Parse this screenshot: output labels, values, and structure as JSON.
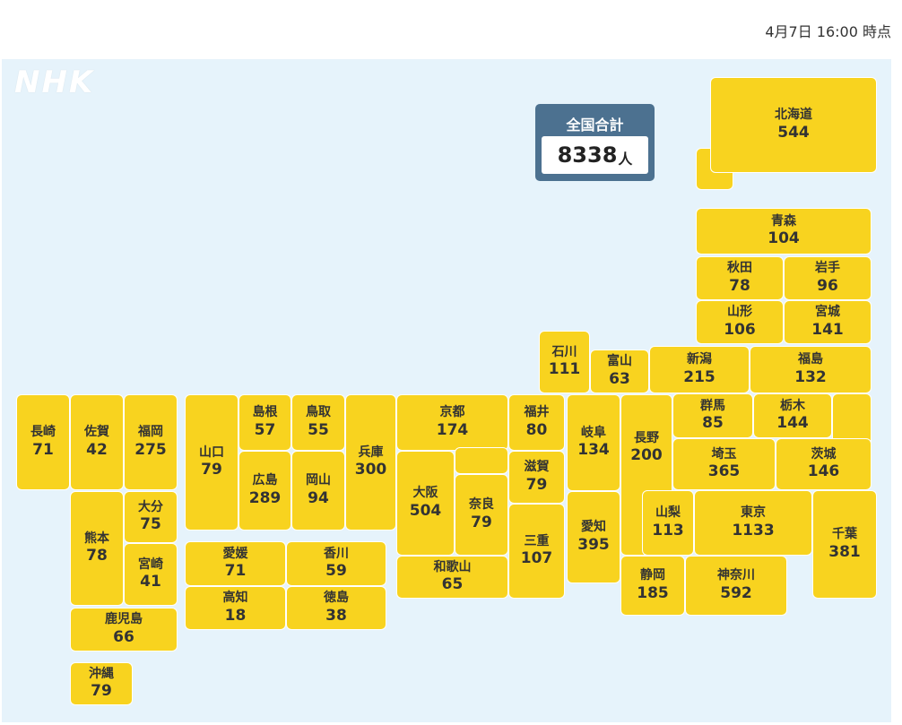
{
  "timestamp": "4月7日 16:00 時点",
  "logo": "NHK",
  "total": {
    "label": "全国合計",
    "value": "8338",
    "unit": "人"
  },
  "colors": {
    "tile": "#f8d31f",
    "background": "#e6f3fb",
    "total_box": "#4c7190"
  },
  "prefectures": [
    {
      "name": "北海道",
      "value": "544"
    },
    {
      "name": "青森",
      "value": "104"
    },
    {
      "name": "秋田",
      "value": "78"
    },
    {
      "name": "岩手",
      "value": "96"
    },
    {
      "name": "山形",
      "value": "106"
    },
    {
      "name": "宮城",
      "value": "141"
    },
    {
      "name": "石川",
      "value": "111"
    },
    {
      "name": "富山",
      "value": "63"
    },
    {
      "name": "新潟",
      "value": "215"
    },
    {
      "name": "福島",
      "value": "132"
    },
    {
      "name": "長崎",
      "value": "71"
    },
    {
      "name": "佐賀",
      "value": "42"
    },
    {
      "name": "福岡",
      "value": "275"
    },
    {
      "name": "山口",
      "value": "79"
    },
    {
      "name": "島根",
      "value": "57"
    },
    {
      "name": "鳥取",
      "value": "55"
    },
    {
      "name": "兵庫",
      "value": "300"
    },
    {
      "name": "京都",
      "value": "174"
    },
    {
      "name": "福井",
      "value": "80"
    },
    {
      "name": "岐阜",
      "value": "134"
    },
    {
      "name": "長野",
      "value": "200"
    },
    {
      "name": "群馬",
      "value": "85"
    },
    {
      "name": "栃木",
      "value": "144"
    },
    {
      "name": "広島",
      "value": "289"
    },
    {
      "name": "岡山",
      "value": "94"
    },
    {
      "name": "滋賀",
      "value": "79"
    },
    {
      "name": "埼玉",
      "value": "365"
    },
    {
      "name": "茨城",
      "value": "146"
    },
    {
      "name": "熊本",
      "value": "78"
    },
    {
      "name": "大分",
      "value": "75"
    },
    {
      "name": "宮崎",
      "value": "41"
    },
    {
      "name": "大阪",
      "value": "504"
    },
    {
      "name": "奈良",
      "value": "79"
    },
    {
      "name": "愛知",
      "value": "395"
    },
    {
      "name": "三重",
      "value": "107"
    },
    {
      "name": "山梨",
      "value": "113"
    },
    {
      "name": "東京",
      "value": "1133"
    },
    {
      "name": "千葉",
      "value": "381"
    },
    {
      "name": "愛媛",
      "value": "71"
    },
    {
      "name": "香川",
      "value": "59"
    },
    {
      "name": "高知",
      "value": "18"
    },
    {
      "name": "徳島",
      "value": "38"
    },
    {
      "name": "和歌山",
      "value": "65"
    },
    {
      "name": "静岡",
      "value": "185"
    },
    {
      "name": "神奈川",
      "value": "592"
    },
    {
      "name": "鹿児島",
      "value": "66"
    },
    {
      "name": "沖縄",
      "value": "79"
    }
  ]
}
